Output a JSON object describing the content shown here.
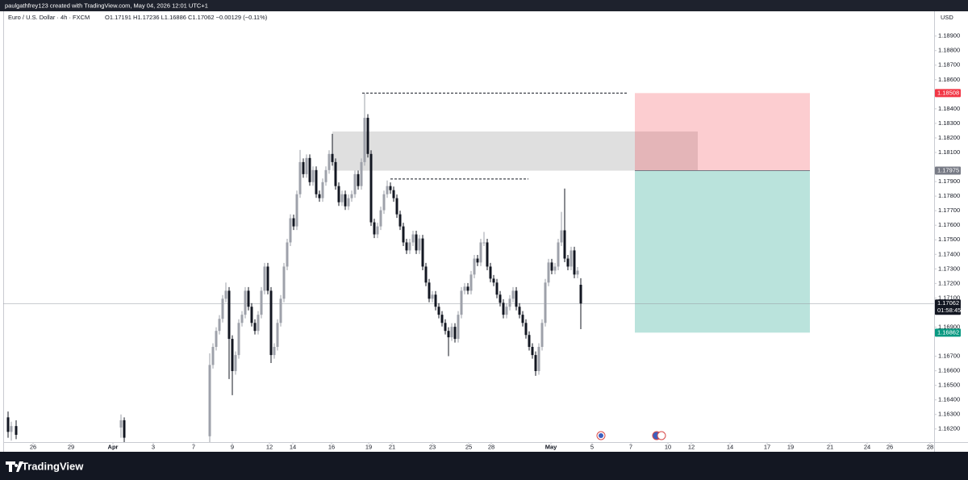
{
  "attribution": "paulgathfrey123 created with TradingView.com, May 04, 2026 12:01 UTC+1",
  "brand": "TradingView",
  "chart_data": {
    "type": "candlestick",
    "title": "Euro / U.S. Dollar · 4h · FXCM",
    "ohlc_legend": "O1.17191  H1.17236  L1.16886  C1.17062  −0.00129 (−0.11%)",
    "currency": "USD",
    "up_color": "#9ea1aa",
    "down_color": "#131722",
    "ylim": [
      1.1611,
      1.1907
    ],
    "yticks": [
      {
        "value": 1.189,
        "label": "1.18900"
      },
      {
        "value": 1.188,
        "label": "1.18800"
      },
      {
        "value": 1.187,
        "label": "1.18700"
      },
      {
        "value": 1.186,
        "label": "1.18600"
      },
      {
        "value": 1.184,
        "label": "1.18400"
      },
      {
        "value": 1.183,
        "label": "1.18300"
      },
      {
        "value": 1.182,
        "label": "1.18200"
      },
      {
        "value": 1.181,
        "label": "1.18100"
      },
      {
        "value": 1.179,
        "label": "1.17900"
      },
      {
        "value": 1.178,
        "label": "1.17800"
      },
      {
        "value": 1.177,
        "label": "1.17700"
      },
      {
        "value": 1.176,
        "label": "1.17600"
      },
      {
        "value": 1.175,
        "label": "1.17500"
      },
      {
        "value": 1.174,
        "label": "1.17400"
      },
      {
        "value": 1.173,
        "label": "1.17300"
      },
      {
        "value": 1.172,
        "label": "1.17200"
      },
      {
        "value": 1.171,
        "label": "1.17100"
      },
      {
        "value": 1.169,
        "label": "1.16900"
      },
      {
        "value": 1.167,
        "label": "1.16700"
      },
      {
        "value": 1.166,
        "label": "1.16600"
      },
      {
        "value": 1.165,
        "label": "1.16500"
      },
      {
        "value": 1.164,
        "label": "1.16400"
      },
      {
        "value": 1.163,
        "label": "1.16300"
      },
      {
        "value": 1.162,
        "label": "1.16200"
      }
    ],
    "xlim": [
      0,
      288.5
    ],
    "xticks": [
      {
        "value": 9.25,
        "label": "26"
      },
      {
        "value": 21,
        "label": "29"
      },
      {
        "value": 34,
        "label": "Apr"
      },
      {
        "value": 46.5,
        "label": "3"
      },
      {
        "value": 59,
        "label": "7"
      },
      {
        "value": 71,
        "label": "9"
      },
      {
        "value": 82.5,
        "label": "12"
      },
      {
        "value": 89.75,
        "label": "14"
      },
      {
        "value": 101.75,
        "label": "16"
      },
      {
        "value": 113.25,
        "label": "19"
      },
      {
        "value": 120.5,
        "label": "21"
      },
      {
        "value": 133,
        "label": "23"
      },
      {
        "value": 144.25,
        "label": "25"
      },
      {
        "value": 151.25,
        "label": "28"
      },
      {
        "value": 169.75,
        "label": "May"
      },
      {
        "value": 182.5,
        "label": "5"
      },
      {
        "value": 194.5,
        "label": "7"
      },
      {
        "value": 206,
        "label": "10"
      },
      {
        "value": 213.25,
        "label": "12"
      },
      {
        "value": 225.25,
        "label": "14"
      },
      {
        "value": 236.75,
        "label": "17"
      },
      {
        "value": 244,
        "label": "19"
      },
      {
        "value": 256.25,
        "label": "21"
      },
      {
        "value": 267.75,
        "label": "24"
      },
      {
        "value": 274.75,
        "label": "26"
      },
      {
        "value": 287.25,
        "label": "28"
      }
    ],
    "x": [
      1.5,
      2.5,
      4,
      36.5,
      37.5,
      64,
      65,
      66,
      67,
      68,
      69,
      70,
      71,
      72,
      73,
      74,
      75,
      76,
      77,
      78,
      79,
      80,
      81,
      82,
      83,
      84,
      85,
      86,
      87,
      88,
      89,
      90,
      91,
      92,
      93,
      94,
      95,
      96,
      97,
      98,
      99,
      100,
      101,
      102,
      103,
      104,
      105,
      106,
      107,
      108,
      109,
      110,
      111,
      112,
      113,
      114,
      115,
      116,
      117,
      118,
      119,
      120,
      121,
      122,
      123,
      124,
      125,
      126,
      127,
      128,
      129,
      130,
      131,
      132,
      133,
      134,
      135,
      136,
      137,
      138,
      139,
      140,
      141,
      142,
      143,
      144,
      145,
      146,
      147,
      148,
      149,
      150,
      151,
      152,
      153,
      154,
      155,
      156,
      157,
      158,
      159,
      160,
      161,
      162,
      163,
      164,
      165,
      166,
      167,
      168,
      169,
      170,
      171,
      172,
      173,
      174,
      175,
      176,
      177,
      178,
      179
    ],
    "open": [
      1.1628,
      1.1618,
      1.1622,
      1.1621,
      1.1626,
      1.1615,
      1.1664,
      1.16764,
      1.16874,
      1.16957,
      1.17095,
      1.1715,
      1.16819,
      1.16598,
      1.16708,
      1.16929,
      1.16985,
      1.1715,
      1.1704,
      1.16929,
      1.16874,
      1.16985,
      1.1715,
      1.17316,
      1.1715,
      1.16708,
      1.16764,
      1.16929,
      1.17095,
      1.17316,
      1.17482,
      1.17648,
      1.17592,
      1.17813,
      1.18034,
      1.17951,
      1.18062,
      1.17896,
      1.17979,
      1.17813,
      1.17786,
      1.17896,
      1.17979,
      1.1809,
      1.18034,
      1.17869,
      1.17758,
      1.17813,
      1.1773,
      1.17786,
      1.17813,
      1.17951,
      1.17869,
      1.18034,
      1.18338,
      1.1809,
      1.1762,
      1.17537,
      1.17592,
      1.17703,
      1.17813,
      1.17869,
      1.17841,
      1.17786,
      1.17675,
      1.17592,
      1.17482,
      1.17427,
      1.17482,
      1.17537,
      1.17427,
      1.17509,
      1.17316,
      1.17206,
      1.17095,
      1.17123,
      1.1704,
      1.16985,
      1.16929,
      1.16874,
      1.1683,
      1.16902,
      1.16819,
      1.16985,
      1.1715,
      1.17178,
      1.1715,
      1.17261,
      1.17371,
      1.17344,
      1.17482,
      1.17482,
      1.17316,
      1.17233,
      1.17206,
      1.17123,
      1.17067,
      1.16985,
      1.1704,
      1.17095,
      1.1715,
      1.1704,
      1.16985,
      1.16929,
      1.16846,
      1.16764,
      1.16708,
      1.16598,
      1.16764,
      1.16929,
      1.17206,
      1.17344,
      1.17288,
      1.17316,
      1.17482,
      1.17565,
      1.17371,
      1.17316,
      1.17427,
      1.17261,
      1.17191
    ],
    "high": [
      1.1632,
      1.1625,
      1.1626,
      1.163,
      1.1628,
      1.1672,
      1.16789,
      1.16899,
      1.16982,
      1.1712,
      1.17206,
      1.17175,
      1.16844,
      1.16733,
      1.16954,
      1.1701,
      1.17175,
      1.17175,
      1.17065,
      1.16954,
      1.1701,
      1.17175,
      1.17341,
      1.17341,
      1.17175,
      1.16789,
      1.16954,
      1.1712,
      1.17341,
      1.17507,
      1.17675,
      1.17673,
      1.17838,
      1.18117,
      1.18059,
      1.18087,
      1.18087,
      1.18004,
      1.18004,
      1.17838,
      1.17921,
      1.18004,
      1.18115,
      1.18228,
      1.18059,
      1.17894,
      1.17838,
      1.17838,
      1.17811,
      1.17838,
      1.17976,
      1.17976,
      1.18059,
      1.18508,
      1.18363,
      1.18115,
      1.17645,
      1.17617,
      1.17728,
      1.17838,
      1.17907,
      1.17894,
      1.17866,
      1.17811,
      1.177,
      1.17617,
      1.17507,
      1.17507,
      1.17562,
      1.17562,
      1.17534,
      1.17534,
      1.17341,
      1.17231,
      1.17148,
      1.17148,
      1.17065,
      1.1701,
      1.16954,
      1.16899,
      1.16927,
      1.16927,
      1.1701,
      1.17175,
      1.17203,
      1.17203,
      1.17286,
      1.17396,
      1.17396,
      1.17507,
      1.17554,
      1.17507,
      1.17341,
      1.17258,
      1.17231,
      1.17148,
      1.17092,
      1.17065,
      1.1712,
      1.17175,
      1.17175,
      1.17065,
      1.1701,
      1.16954,
      1.16871,
      1.16789,
      1.16733,
      1.16789,
      1.16954,
      1.17231,
      1.17369,
      1.17369,
      1.17341,
      1.17507,
      1.17692,
      1.17852,
      1.17396,
      1.17452,
      1.17452,
      1.17313,
      1.17236
    ],
    "low": [
      1.1614,
      1.1612,
      1.1613,
      1.1614,
      1.1611,
      1.1611,
      1.16615,
      1.16739,
      1.16849,
      1.16932,
      1.1707,
      1.16543,
      1.16432,
      1.16573,
      1.16683,
      1.16904,
      1.1696,
      1.17015,
      1.16904,
      1.16849,
      1.16849,
      1.1696,
      1.17125,
      1.17125,
      1.16653,
      1.16683,
      1.16739,
      1.16904,
      1.1707,
      1.17291,
      1.17457,
      1.17567,
      1.17567,
      1.17788,
      1.17926,
      1.17926,
      1.17871,
      1.17871,
      1.17788,
      1.17761,
      1.17761,
      1.17871,
      1.17954,
      1.18009,
      1.17844,
      1.17733,
      1.17733,
      1.17705,
      1.17705,
      1.17761,
      1.17788,
      1.17844,
      1.17844,
      1.18009,
      1.18065,
      1.17595,
      1.17512,
      1.17512,
      1.17567,
      1.17678,
      1.17788,
      1.17816,
      1.17761,
      1.1765,
      1.17567,
      1.17457,
      1.17402,
      1.17402,
      1.17457,
      1.17402,
      1.17402,
      1.17291,
      1.17181,
      1.1707,
      1.1707,
      1.17015,
      1.1696,
      1.16904,
      1.16849,
      1.167,
      1.16805,
      1.16794,
      1.16794,
      1.1696,
      1.17125,
      1.17125,
      1.17125,
      1.17236,
      1.17319,
      1.17319,
      1.17457,
      1.17291,
      1.17208,
      1.17181,
      1.17098,
      1.17042,
      1.1696,
      1.1696,
      1.17015,
      1.1707,
      1.17015,
      1.1696,
      1.16904,
      1.16821,
      1.16739,
      1.16683,
      1.16565,
      1.16573,
      1.16739,
      1.16904,
      1.17181,
      1.17263,
      1.17263,
      1.17291,
      1.17457,
      1.17346,
      1.17291,
      1.17291,
      1.17236,
      1.17236,
      1.16886
    ],
    "close": [
      1.1618,
      1.1622,
      1.1616,
      1.1626,
      1.1614,
      1.1664,
      1.16764,
      1.16874,
      1.16957,
      1.17095,
      1.1715,
      1.16819,
      1.16598,
      1.16708,
      1.16929,
      1.16985,
      1.1715,
      1.1704,
      1.16929,
      1.16874,
      1.16985,
      1.1715,
      1.17316,
      1.1715,
      1.16708,
      1.16764,
      1.16929,
      1.17095,
      1.17316,
      1.17482,
      1.17648,
      1.17592,
      1.17813,
      1.18034,
      1.17951,
      1.18062,
      1.17896,
      1.17979,
      1.17813,
      1.17786,
      1.17896,
      1.17979,
      1.1809,
      1.18034,
      1.17869,
      1.17758,
      1.17813,
      1.1773,
      1.17786,
      1.17813,
      1.17951,
      1.17869,
      1.18034,
      1.18338,
      1.1809,
      1.1762,
      1.17537,
      1.17592,
      1.17703,
      1.17813,
      1.17869,
      1.17841,
      1.17786,
      1.17675,
      1.17592,
      1.17482,
      1.17427,
      1.17482,
      1.17537,
      1.17427,
      1.17509,
      1.17316,
      1.17206,
      1.17095,
      1.17123,
      1.1704,
      1.16985,
      1.16929,
      1.16874,
      1.1683,
      1.16902,
      1.16819,
      1.16985,
      1.1715,
      1.17178,
      1.1715,
      1.17261,
      1.17371,
      1.17344,
      1.17482,
      1.17482,
      1.17316,
      1.17233,
      1.17206,
      1.17123,
      1.17067,
      1.16985,
      1.1704,
      1.17095,
      1.1715,
      1.1704,
      1.16985,
      1.16929,
      1.16846,
      1.16764,
      1.16708,
      1.16598,
      1.16764,
      1.16929,
      1.17206,
      1.17344,
      1.17288,
      1.17316,
      1.17482,
      1.17565,
      1.17371,
      1.17316,
      1.17427,
      1.17261,
      1.17288,
      1.17062
    ],
    "zone": {
      "top": 1.18244,
      "bottom": 1.17975,
      "x": [
        102,
        215.25
      ],
      "color": "#d4d4d4"
    },
    "levels": [
      {
        "value": 1.18508,
        "x": [
          111.25,
          193.5
        ]
      },
      {
        "value": 1.17918,
        "x": [
          120,
          162.75
        ]
      }
    ],
    "position": {
      "stop": 1.18508,
      "entry": 1.17975,
      "target": 1.16862,
      "x": [
        195.75,
        250
      ],
      "stop_color": "#f23645",
      "entry_color": "#787b86",
      "target_color": "#089981"
    },
    "last_price": 1.17062,
    "countdown": "01:58:45"
  }
}
